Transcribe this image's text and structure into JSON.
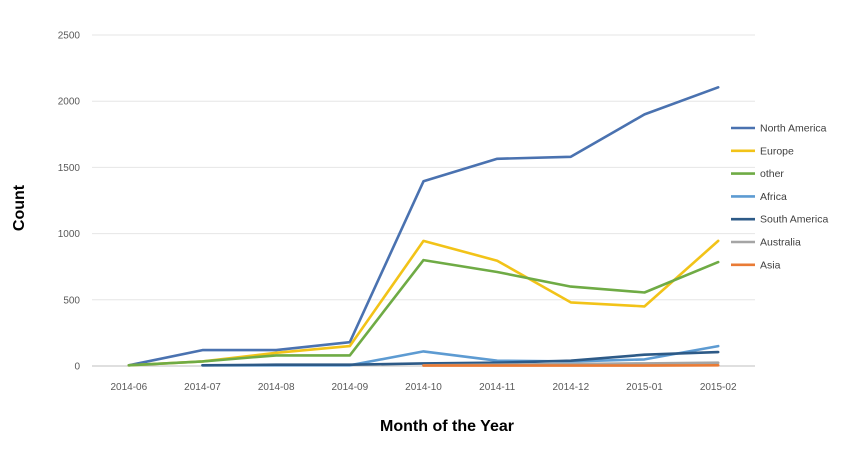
{
  "chart_data": {
    "type": "line",
    "xlabel": "Month of the Year",
    "ylabel": "Count",
    "categories": [
      "2014-06",
      "2014-07",
      "2014-08",
      "2014-09",
      "2014-10",
      "2014-11",
      "2014-12",
      "2015-01",
      "2015-02"
    ],
    "ylim": [
      0,
      2500
    ],
    "yticks": [
      0,
      500,
      1000,
      1500,
      2000,
      2500
    ],
    "grid": true,
    "legend": "right",
    "series": [
      {
        "name": "North America",
        "color": "#4a72b0",
        "values": [
          5,
          120,
          120,
          180,
          1395,
          1565,
          1580,
          1900,
          2105
        ]
      },
      {
        "name": "Europe",
        "color": "#f2c318",
        "values": [
          5,
          35,
          100,
          150,
          945,
          795,
          480,
          450,
          945
        ]
      },
      {
        "name": "other",
        "color": "#6fab45",
        "values": [
          5,
          35,
          80,
          80,
          800,
          710,
          600,
          555,
          785
        ]
      },
      {
        "name": "Africa",
        "color": "#5d9bd2",
        "values": [
          null,
          5,
          5,
          5,
          110,
          40,
          35,
          50,
          150
        ]
      },
      {
        "name": "South America",
        "color": "#2d5a87",
        "values": [
          null,
          5,
          10,
          10,
          20,
          25,
          40,
          85,
          105
        ]
      },
      {
        "name": "Australia",
        "color": "#a5a5a5",
        "values": [
          null,
          null,
          null,
          null,
          5,
          10,
          15,
          20,
          25
        ]
      },
      {
        "name": "Asia",
        "color": "#e97b35",
        "values": [
          null,
          null,
          null,
          null,
          3,
          3,
          3,
          3,
          5
        ]
      }
    ]
  }
}
